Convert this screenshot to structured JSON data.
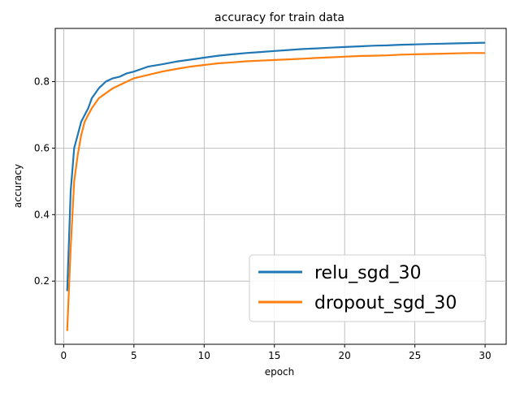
{
  "chart_data": {
    "type": "line",
    "title": "accuracy for train data",
    "xlabel": "epoch",
    "ylabel": "accuracy",
    "xlim": [
      -0.6,
      31.5
    ],
    "ylim": [
      0.01,
      0.96
    ],
    "xticks": [
      0,
      5,
      10,
      15,
      20,
      25,
      30
    ],
    "yticks": [
      0.2,
      0.4,
      0.6,
      0.8
    ],
    "ytick_labels": [
      "0.2",
      "0.4",
      "0.6",
      "0.8"
    ],
    "grid": true,
    "legend_position": "lower-right",
    "series": [
      {
        "name": "relu_sgd_30",
        "color": "#1f77b4",
        "x": [
          0.25,
          0.5,
          0.75,
          1,
          1.25,
          1.5,
          1.75,
          2,
          2.5,
          3,
          3.5,
          4,
          4.5,
          5,
          6,
          7,
          8,
          9,
          10,
          11,
          12,
          13,
          14,
          15,
          16,
          17,
          18,
          19,
          20,
          21,
          22,
          23,
          24,
          25,
          26,
          27,
          28,
          29,
          30
        ],
        "y": [
          0.17,
          0.47,
          0.6,
          0.64,
          0.68,
          0.7,
          0.72,
          0.75,
          0.78,
          0.8,
          0.81,
          0.815,
          0.825,
          0.83,
          0.845,
          0.852,
          0.86,
          0.866,
          0.872,
          0.878,
          0.882,
          0.886,
          0.889,
          0.892,
          0.895,
          0.898,
          0.9,
          0.902,
          0.904,
          0.906,
          0.908,
          0.909,
          0.911,
          0.912,
          0.913,
          0.914,
          0.915,
          0.916,
          0.917
        ]
      },
      {
        "name": "dropout_sgd_30",
        "color": "#ff7f0e",
        "x": [
          0.25,
          0.5,
          0.75,
          1,
          1.25,
          1.5,
          1.75,
          2,
          2.5,
          3,
          3.5,
          4,
          4.5,
          5,
          6,
          7,
          8,
          9,
          10,
          11,
          12,
          13,
          14,
          15,
          16,
          17,
          18,
          19,
          20,
          21,
          22,
          23,
          24,
          25,
          26,
          27,
          28,
          29,
          30
        ],
        "y": [
          0.05,
          0.3,
          0.5,
          0.58,
          0.64,
          0.68,
          0.7,
          0.72,
          0.75,
          0.765,
          0.78,
          0.79,
          0.8,
          0.81,
          0.82,
          0.83,
          0.838,
          0.845,
          0.85,
          0.855,
          0.858,
          0.861,
          0.863,
          0.865,
          0.867,
          0.869,
          0.871,
          0.873,
          0.875,
          0.877,
          0.878,
          0.879,
          0.881,
          0.882,
          0.883,
          0.884,
          0.885,
          0.886,
          0.886
        ]
      }
    ]
  }
}
